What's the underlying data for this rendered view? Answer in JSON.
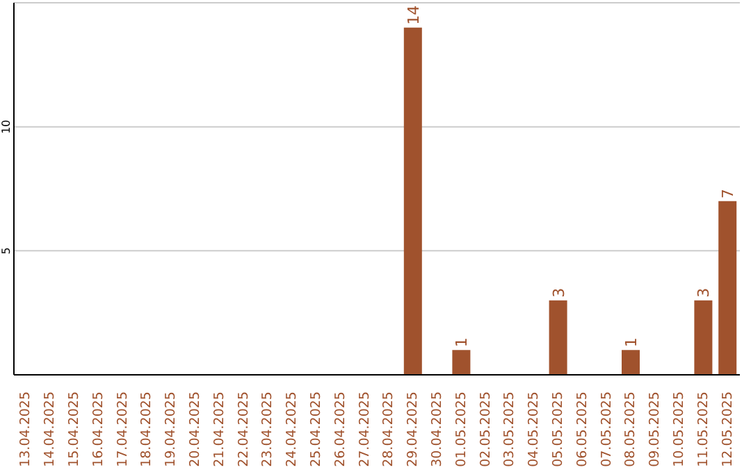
{
  "chart_data": {
    "type": "bar",
    "categories": [
      "13.04.2025",
      "14.04.2025",
      "15.04.2025",
      "16.04.2025",
      "17.04.2025",
      "18.04.2025",
      "19.04.2025",
      "20.04.2025",
      "21.04.2025",
      "22.04.2025",
      "23.04.2025",
      "24.04.2025",
      "25.04.2025",
      "26.04.2025",
      "27.04.2025",
      "28.04.2025",
      "29.04.2025",
      "30.04.2025",
      "01.05.2025",
      "02.05.2025",
      "03.05.2025",
      "04.05.2025",
      "05.05.2025",
      "06.05.2025",
      "07.05.2025",
      "08.05.2025",
      "09.05.2025",
      "10.05.2025",
      "11.05.2025",
      "12.05.2025"
    ],
    "values": [
      0,
      0,
      0,
      0,
      0,
      0,
      0,
      0,
      0,
      0,
      0,
      0,
      0,
      0,
      0,
      0,
      14,
      0,
      1,
      0,
      0,
      0,
      3,
      0,
      0,
      1,
      0,
      0,
      3,
      7
    ],
    "value_labels": [
      null,
      null,
      null,
      null,
      null,
      null,
      null,
      null,
      null,
      null,
      null,
      null,
      null,
      null,
      null,
      null,
      "14",
      null,
      "1",
      null,
      null,
      null,
      "3",
      null,
      null,
      "1",
      null,
      null,
      "3",
      "7"
    ],
    "color": "#a0522d",
    "ylim": [
      0,
      15
    ],
    "yticks": [
      5,
      10
    ],
    "grid": "y"
  }
}
